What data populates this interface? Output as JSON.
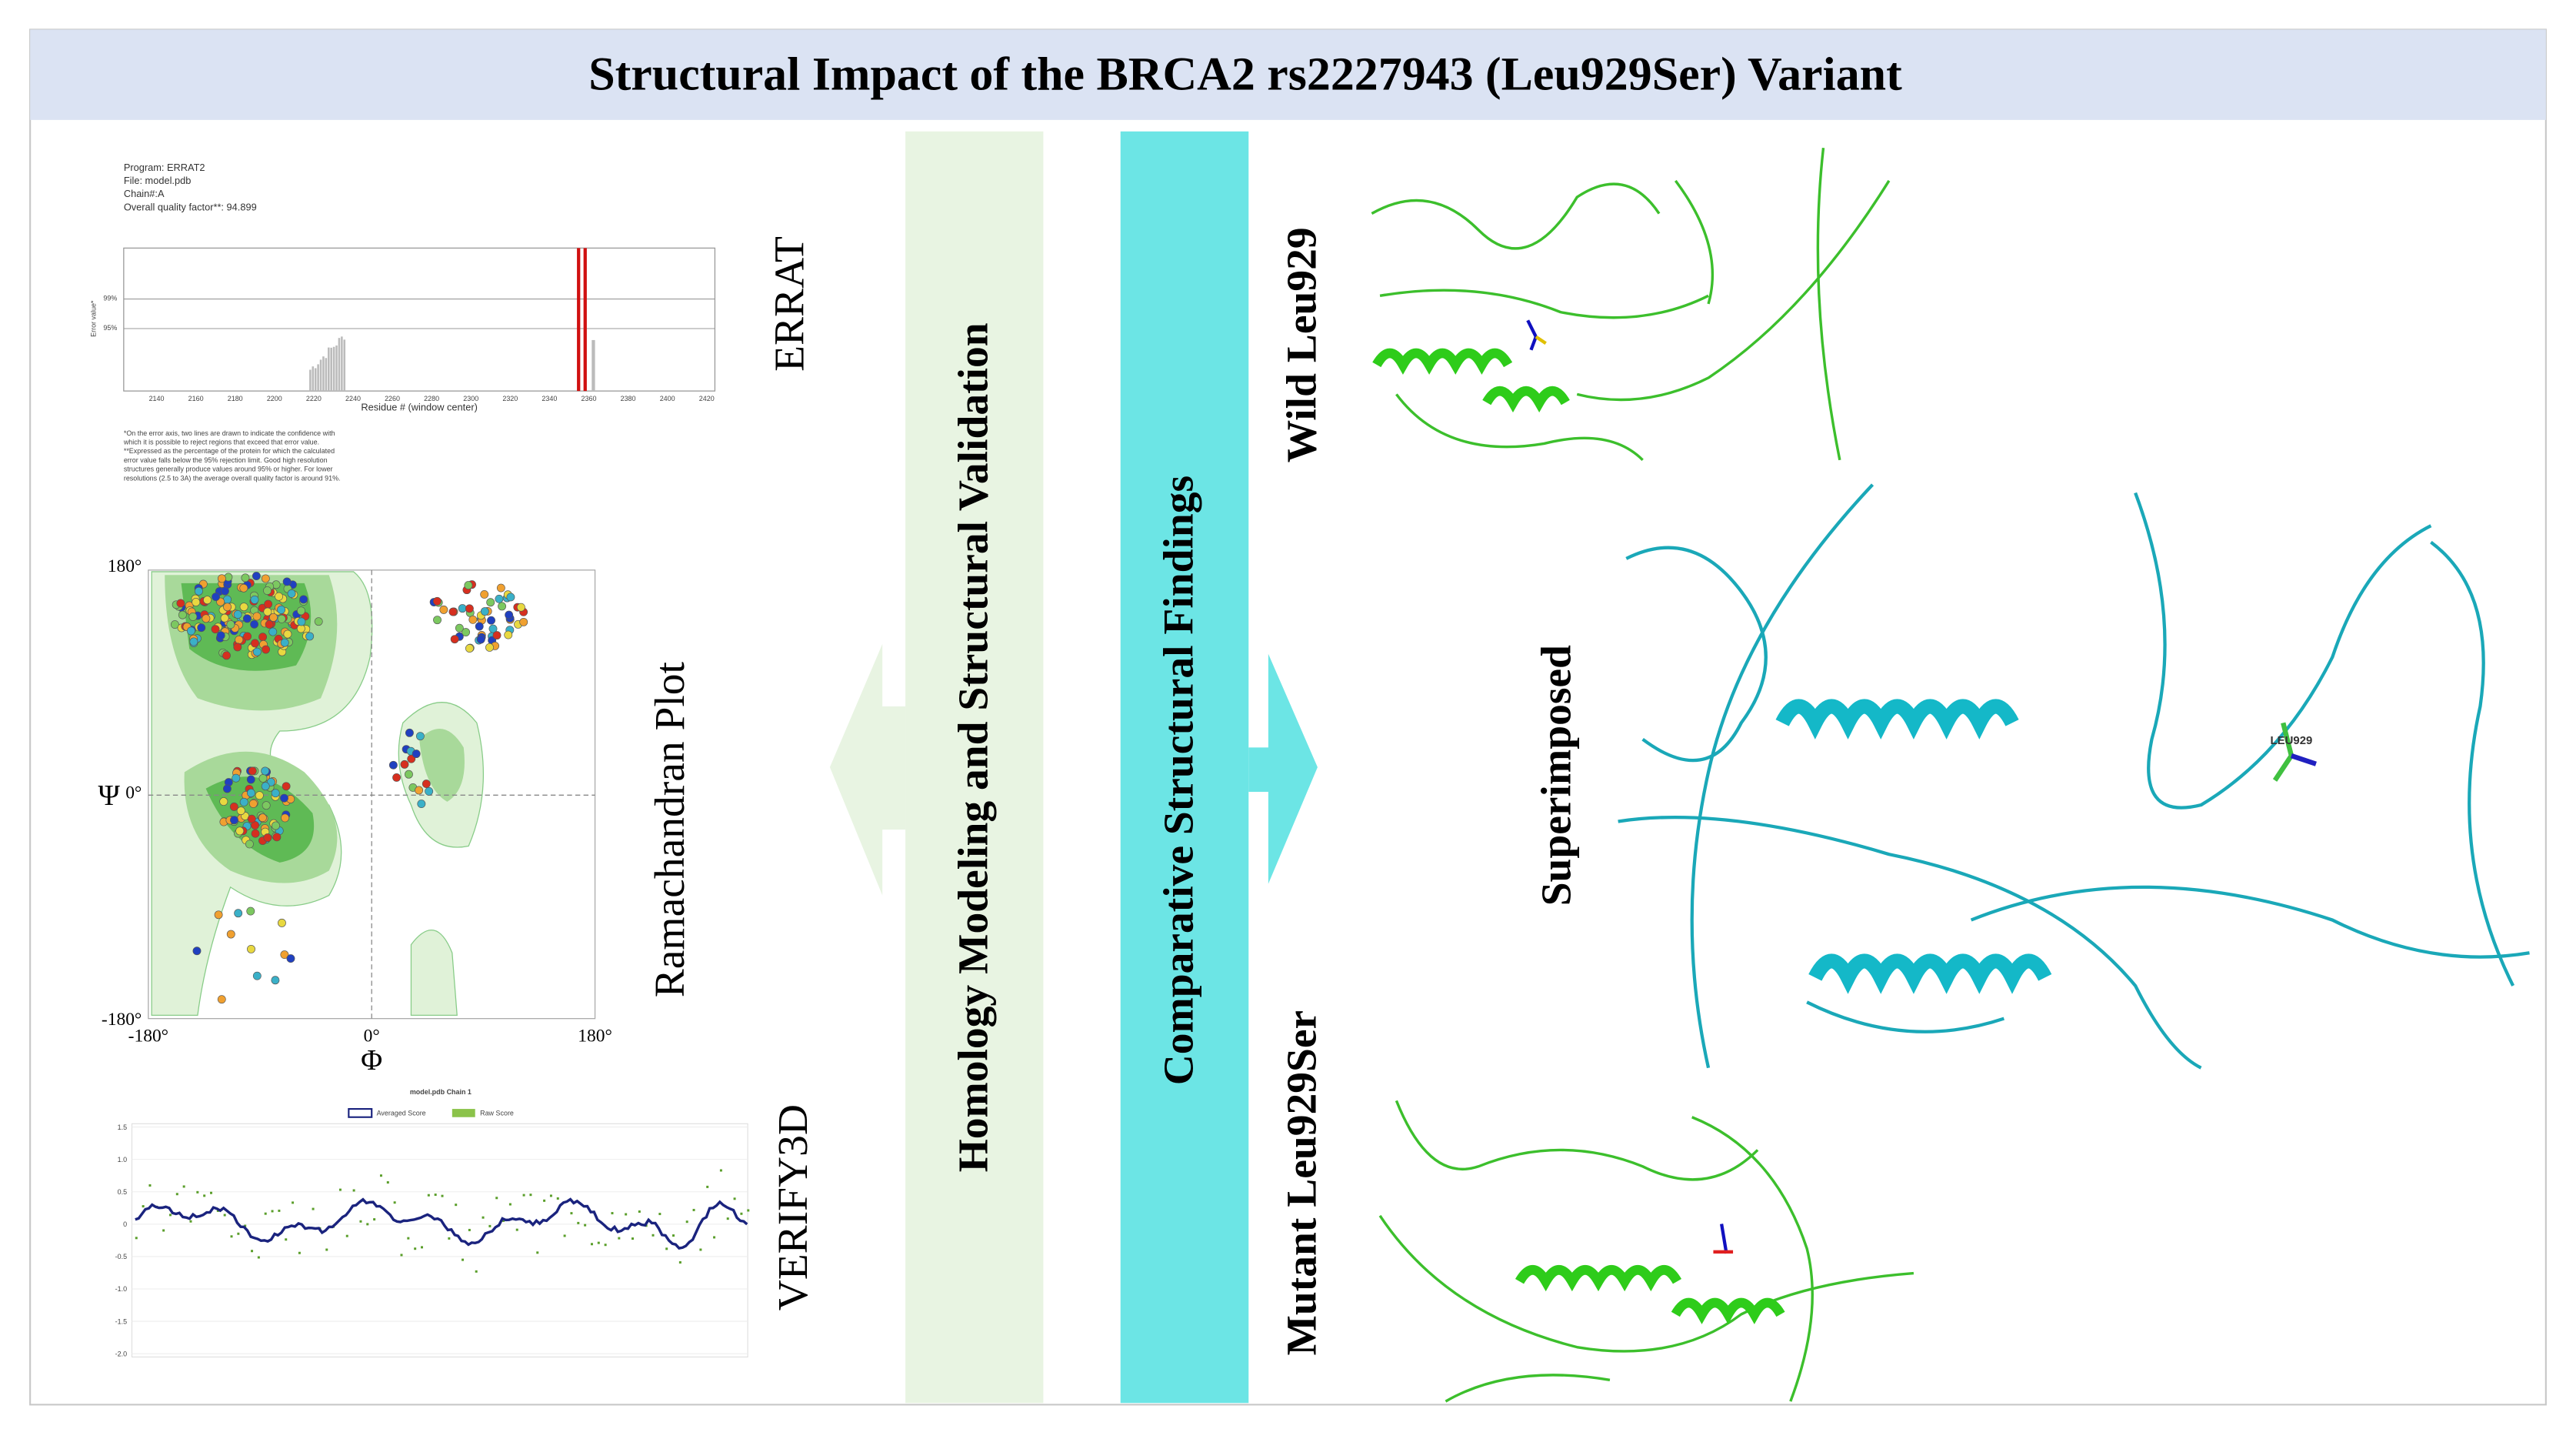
{
  "header": {
    "title": "Structural Impact of the BRCA2 rs2227943 (Leu929Ser) Variant"
  },
  "errat": {
    "label": "ERRAT",
    "info": [
      "Program: ERRAT2",
      "File: model.pdb",
      "Chain#:A",
      "Overall quality factor**: 94.899"
    ],
    "y_label": "Error value*",
    "y_ticks": [
      "99%",
      "95%"
    ],
    "x_ticks": [
      "2140",
      "2160",
      "2180",
      "2200",
      "2220",
      "2240",
      "2260",
      "2280",
      "2300",
      "2320",
      "2340",
      "2360",
      "2380",
      "2400",
      "2420"
    ],
    "x_label": "Residue # (window center)",
    "footnotes": [
      "*On the error axis, two lines are drawn to indicate the confidence with",
      "which it is possible to reject regions that exceed that error value.",
      "**Expressed as the percentage of the protein for which the calculated",
      "error value falls below the 95% rejection limit.  Good high resolution",
      "structures generally produce values around 95% or higher.  For lower",
      "resolutions (2.5 to 3A) the average overall quality factor is around 91%."
    ]
  },
  "ramachandran": {
    "label": "Ramachandran Plot",
    "y_axis": "Ψ",
    "x_axis": "Φ",
    "y_ticks": [
      "180°",
      "0°",
      "-180°"
    ],
    "x_ticks": [
      "-180°",
      "0°",
      "180°"
    ]
  },
  "verify3d": {
    "label": "VERIFY3D",
    "title": "model.pdb Chain 1",
    "legend": [
      "Averaged Score",
      "Raw Score"
    ],
    "y_ticks": [
      "1.5",
      "1.0",
      "0.5",
      "0",
      "-0.5",
      "-1.0",
      "-1.5",
      "-2.0"
    ]
  },
  "middle": {
    "left": "Homology Modeling and Structural Validation",
    "right": "Comparative Structural Findings"
  },
  "structures": {
    "wild": "Wild Leu929",
    "superimposed": "Superimposed",
    "mutant": "Mutant Leu929Ser",
    "residue_label": "LEU929"
  }
}
